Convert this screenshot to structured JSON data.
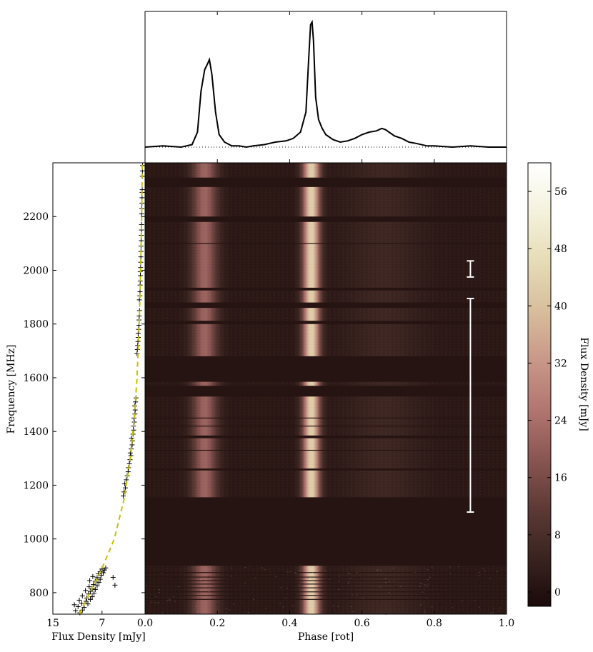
{
  "chart_data": [
    {
      "panel": "pulse_profile",
      "type": "line",
      "title": "",
      "xlabel": "",
      "ylabel": "",
      "xlim": [
        0.0,
        1.0
      ],
      "baseline_style": "dotted",
      "x": [
        0.0,
        0.05,
        0.1,
        0.13,
        0.145,
        0.155,
        0.165,
        0.172,
        0.178,
        0.185,
        0.195,
        0.205,
        0.22,
        0.24,
        0.26,
        0.28,
        0.3,
        0.33,
        0.36,
        0.39,
        0.41,
        0.43,
        0.445,
        0.453,
        0.458,
        0.462,
        0.466,
        0.472,
        0.48,
        0.49,
        0.5,
        0.52,
        0.54,
        0.56,
        0.58,
        0.6,
        0.62,
        0.64,
        0.655,
        0.665,
        0.675,
        0.69,
        0.71,
        0.73,
        0.75,
        0.78,
        0.8,
        0.85,
        0.9,
        0.95,
        1.0
      ],
      "y": [
        0.0,
        0.01,
        0.0,
        0.02,
        0.12,
        0.45,
        0.62,
        0.66,
        0.7,
        0.58,
        0.28,
        0.1,
        0.04,
        0.01,
        0.01,
        0.0,
        0.01,
        0.02,
        0.04,
        0.05,
        0.07,
        0.12,
        0.28,
        0.72,
        0.98,
        1.0,
        0.85,
        0.4,
        0.22,
        0.15,
        0.1,
        0.06,
        0.04,
        0.05,
        0.07,
        0.1,
        0.12,
        0.13,
        0.15,
        0.14,
        0.12,
        0.09,
        0.07,
        0.04,
        0.03,
        0.01,
        0.01,
        0.0,
        0.01,
        0.0,
        0.0
      ]
    },
    {
      "panel": "dynamic_spectrum",
      "type": "heatmap",
      "xlabel": "Phase [rot]",
      "ylabel": "Frequency [MHz]",
      "xlim": [
        0.0,
        1.0
      ],
      "ylim": [
        720,
        2400
      ],
      "xticks": [
        "0.2",
        "0.4",
        "0.6",
        "0.8",
        "1.0"
      ],
      "yticks": [
        "800",
        "1000",
        "1200",
        "1400",
        "1600",
        "1800",
        "2000",
        "2200"
      ],
      "components": [
        {
          "name": "leading peak",
          "phase": 0.165,
          "width": 0.024,
          "peak": 20
        },
        {
          "name": "main peak",
          "phase": 0.46,
          "width": 0.016,
          "peak": 42
        },
        {
          "name": "trailing bump",
          "phase": 0.66,
          "width": 0.07,
          "peak": 4
        }
      ],
      "masked_bands_mhz": [
        [
          900,
          1155
        ],
        [
          1530,
          1570
        ],
        [
          1585,
          1680
        ],
        [
          2310,
          2345
        ],
        [
          2180,
          2200
        ],
        [
          1925,
          1935
        ],
        [
          1860,
          1880
        ],
        [
          1800,
          1812
        ],
        [
          1375,
          1385
        ],
        [
          1255,
          1262
        ]
      ],
      "zapped_channels_mhz": [
        775,
        790,
        803,
        818,
        832,
        845,
        858,
        875,
        1450,
        1420,
        1330,
        2100
      ],
      "background_mjy": 0,
      "markers": [
        {
          "phase": 0.9,
          "freq_mhz": [
            1975,
            2035
          ]
        },
        {
          "phase": 0.9,
          "freq_mhz": [
            1100,
            1895
          ]
        }
      ]
    },
    {
      "panel": "flux_spectrum",
      "type": "scatter",
      "xlabel": "Flux Density [mJy]",
      "xlim": [
        15,
        0.0
      ],
      "xticks": [
        "15",
        "7",
        "0.0"
      ],
      "fit": {
        "type": "power law",
        "color": "#c8c000",
        "style": "dashed",
        "points": [
          [
            10.7,
            720
          ],
          [
            9.0,
            800
          ],
          [
            7.2,
            880
          ],
          [
            5.0,
            1000
          ],
          [
            3.4,
            1150
          ],
          [
            2.4,
            1300
          ],
          [
            1.75,
            1450
          ],
          [
            1.3,
            1600
          ],
          [
            0.95,
            1800
          ],
          [
            0.72,
            2000
          ],
          [
            0.55,
            2200
          ],
          [
            0.45,
            2400
          ]
        ]
      },
      "points": [
        [
          10.6,
          725
        ],
        [
          11.3,
          733
        ],
        [
          10.2,
          735
        ],
        [
          9.9,
          745
        ],
        [
          10.9,
          748
        ],
        [
          11.5,
          755
        ],
        [
          9.3,
          758
        ],
        [
          10.3,
          760
        ],
        [
          9.6,
          768
        ],
        [
          10.7,
          772
        ],
        [
          8.9,
          775
        ],
        [
          9.5,
          780
        ],
        [
          8.6,
          785
        ],
        [
          10.2,
          788
        ],
        [
          9.2,
          795
        ],
        [
          8.3,
          798
        ],
        [
          8.9,
          805
        ],
        [
          9.7,
          808
        ],
        [
          8.1,
          812
        ],
        [
          8.6,
          815
        ],
        [
          9.1,
          822
        ],
        [
          7.8,
          826
        ],
        [
          8.4,
          830
        ],
        [
          7.5,
          838
        ],
        [
          8.1,
          842
        ],
        [
          9.0,
          845
        ],
        [
          7.3,
          850
        ],
        [
          7.8,
          856
        ],
        [
          8.5,
          860
        ],
        [
          7.1,
          865
        ],
        [
          7.6,
          870
        ],
        [
          6.8,
          874
        ],
        [
          7.3,
          878
        ],
        [
          6.6,
          884
        ],
        [
          7.0,
          888
        ],
        [
          6.4,
          892
        ],
        [
          5.2,
          857
        ],
        [
          4.9,
          828
        ],
        [
          3.55,
          1160
        ],
        [
          3.4,
          1175
        ],
        [
          3.2,
          1190
        ],
        [
          3.3,
          1205
        ],
        [
          3.05,
          1220
        ],
        [
          2.9,
          1235
        ],
        [
          2.75,
          1250
        ],
        [
          2.7,
          1265
        ],
        [
          2.55,
          1280
        ],
        [
          2.45,
          1295
        ],
        [
          2.3,
          1310
        ],
        [
          2.4,
          1320
        ],
        [
          2.25,
          1335
        ],
        [
          2.1,
          1350
        ],
        [
          2.05,
          1365
        ],
        [
          2.2,
          1375
        ],
        [
          1.95,
          1390
        ],
        [
          1.85,
          1405
        ],
        [
          1.9,
          1420
        ],
        [
          1.75,
          1435
        ],
        [
          1.8,
          1450
        ],
        [
          1.65,
          1465
        ],
        [
          1.6,
          1480
        ],
        [
          1.7,
          1495
        ],
        [
          1.55,
          1510
        ],
        [
          1.45,
          1525
        ],
        [
          1.3,
          1690
        ],
        [
          1.25,
          1705
        ],
        [
          1.2,
          1720
        ],
        [
          1.15,
          1735
        ],
        [
          1.1,
          1750
        ],
        [
          1.12,
          1765
        ],
        [
          1.05,
          1780
        ],
        [
          1.0,
          1795
        ],
        [
          0.98,
          1815
        ],
        [
          0.95,
          1830
        ],
        [
          0.9,
          1850
        ],
        [
          0.92,
          1890
        ],
        [
          0.85,
          1905
        ],
        [
          0.82,
          1920
        ],
        [
          0.8,
          1945
        ],
        [
          0.78,
          1960
        ],
        [
          0.75,
          1980
        ],
        [
          0.77,
          1995
        ],
        [
          0.72,
          2010
        ],
        [
          0.7,
          2030
        ],
        [
          0.68,
          2050
        ],
        [
          0.66,
          2070
        ],
        [
          0.65,
          2090
        ],
        [
          0.62,
          2110
        ],
        [
          0.6,
          2130
        ],
        [
          0.58,
          2150
        ],
        [
          0.56,
          2170
        ],
        [
          0.55,
          2210
        ],
        [
          0.52,
          2230
        ],
        [
          0.5,
          2250
        ],
        [
          0.49,
          2270
        ],
        [
          0.47,
          2290
        ],
        [
          0.46,
          2300
        ],
        [
          0.44,
          2350
        ],
        [
          0.42,
          2370
        ],
        [
          0.4,
          2390
        ]
      ]
    },
    {
      "panel": "colorbar",
      "type": "heatmap",
      "label": "Flux Density [mJy]",
      "range": [
        -2,
        60
      ],
      "ticks": [
        "0",
        "8",
        "16",
        "24",
        "32",
        "40",
        "48",
        "56"
      ],
      "colormap_stops": [
        "#1a0a0a",
        "#3a2420",
        "#5e3a36",
        "#8a5652",
        "#b27670",
        "#c99888",
        "#d8be9c",
        "#e6dcb6",
        "#f4f2dc",
        "#ffffff"
      ]
    }
  ]
}
